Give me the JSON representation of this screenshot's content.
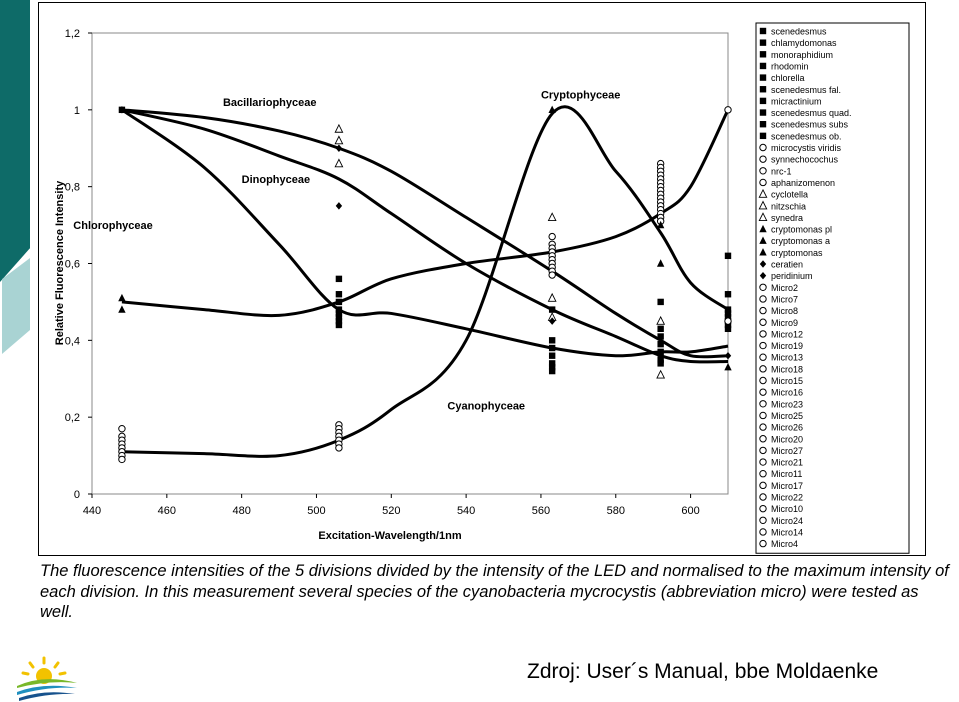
{
  "caption": "The fluorescence intensities of the 5 divisions divided by the intensity of the LED and normalised to the maximum intensity of each division. In this measurement several species of the cyanobacteria mycrocystis (abbreviation micro) were tested as well.",
  "source": "Zdroj: User´s Manual, bbe Moldaenke",
  "chart_data": {
    "type": "scatter",
    "title": "",
    "xlabel": "Excitation-Wavelength/1nm",
    "ylabel": "Relative Fluorescence Intensity",
    "xlim": [
      440,
      610
    ],
    "ylim": [
      0,
      1.2
    ],
    "x_ticks": [
      "440",
      "460",
      "480",
      "500",
      "520",
      "540",
      "560",
      "580",
      "600"
    ],
    "y_ticks": [
      "0",
      "0,2",
      "0,4",
      "0,6",
      "0,8",
      "1",
      "1,2"
    ],
    "grid": false,
    "legend_position": "right",
    "legend": [
      {
        "name": "scenedesmus",
        "marker": "square"
      },
      {
        "name": "chlamydomonas",
        "marker": "square"
      },
      {
        "name": "monoraphidium",
        "marker": "square"
      },
      {
        "name": "rhodomin",
        "marker": "square"
      },
      {
        "name": "chlorella",
        "marker": "square"
      },
      {
        "name": "scenedesmus fal.",
        "marker": "square"
      },
      {
        "name": "micractinium",
        "marker": "square"
      },
      {
        "name": "scenedesmus quad.",
        "marker": "square"
      },
      {
        "name": "scenedesmus subs",
        "marker": "square"
      },
      {
        "name": "scenedesmus ob.",
        "marker": "square"
      },
      {
        "name": "microcystis viridis",
        "marker": "circle"
      },
      {
        "name": "synnechocochus",
        "marker": "circle"
      },
      {
        "name": "nrc-1",
        "marker": "circle"
      },
      {
        "name": "aphanizomenon",
        "marker": "circle"
      },
      {
        "name": "cyclotella",
        "marker": "triangle-open"
      },
      {
        "name": "nitzschia",
        "marker": "triangle-open"
      },
      {
        "name": "synedra",
        "marker": "triangle-open"
      },
      {
        "name": "cryptomonas pl",
        "marker": "triangle"
      },
      {
        "name": "cryptomonas a",
        "marker": "triangle"
      },
      {
        "name": "cryptomonas",
        "marker": "triangle"
      },
      {
        "name": "ceratien",
        "marker": "diamond"
      },
      {
        "name": "peridinium",
        "marker": "diamond"
      },
      {
        "name": "Micro2",
        "marker": "circle"
      },
      {
        "name": "Micro7",
        "marker": "circle"
      },
      {
        "name": "Micro8",
        "marker": "circle"
      },
      {
        "name": "Micro9",
        "marker": "circle"
      },
      {
        "name": "Micro12",
        "marker": "circle"
      },
      {
        "name": "Micro19",
        "marker": "circle"
      },
      {
        "name": "Micro13",
        "marker": "circle"
      },
      {
        "name": "Micro18",
        "marker": "circle"
      },
      {
        "name": "Micro15",
        "marker": "circle"
      },
      {
        "name": "Micro16",
        "marker": "circle"
      },
      {
        "name": "Micro23",
        "marker": "circle"
      },
      {
        "name": "Micro25",
        "marker": "circle"
      },
      {
        "name": "Micro26",
        "marker": "circle"
      },
      {
        "name": "Micro20",
        "marker": "circle"
      },
      {
        "name": "Micro27",
        "marker": "circle"
      },
      {
        "name": "Micro21",
        "marker": "circle"
      },
      {
        "name": "Micro11",
        "marker": "circle"
      },
      {
        "name": "Micro17",
        "marker": "circle"
      },
      {
        "name": "Micro22",
        "marker": "circle"
      },
      {
        "name": "Micro10",
        "marker": "circle"
      },
      {
        "name": "Micro24",
        "marker": "circle"
      },
      {
        "name": "Micro14",
        "marker": "circle"
      },
      {
        "name": "Micro4",
        "marker": "circle"
      }
    ],
    "curves": [
      {
        "name": "Bacillariophyceae",
        "label_at": [
          475,
          1.01
        ],
        "points": [
          [
            448,
            1.0
          ],
          [
            470,
            0.98
          ],
          [
            490,
            0.945
          ],
          [
            506,
            0.9
          ],
          [
            520,
            0.84
          ],
          [
            540,
            0.72
          ],
          [
            563,
            0.58
          ],
          [
            580,
            0.47
          ],
          [
            592,
            0.4
          ],
          [
            600,
            0.36
          ],
          [
            610,
            0.36
          ]
        ]
      },
      {
        "name": "Dinophyceae",
        "label_at": [
          480,
          0.81
        ],
        "points": [
          [
            448,
            1.0
          ],
          [
            470,
            0.95
          ],
          [
            490,
            0.88
          ],
          [
            506,
            0.82
          ],
          [
            520,
            0.73
          ],
          [
            540,
            0.6
          ],
          [
            563,
            0.48
          ],
          [
            580,
            0.41
          ],
          [
            592,
            0.36
          ],
          [
            600,
            0.345
          ],
          [
            610,
            0.345
          ]
        ]
      },
      {
        "name": "Chlorophyceae",
        "label_at": [
          435,
          0.69
        ],
        "points": [
          [
            448,
            0.5
          ],
          [
            470,
            0.48
          ],
          [
            490,
            0.465
          ],
          [
            506,
            0.5
          ],
          [
            520,
            0.56
          ],
          [
            540,
            0.6
          ],
          [
            563,
            0.63
          ],
          [
            580,
            0.67
          ],
          [
            592,
            0.73
          ],
          [
            600,
            0.8
          ],
          [
            610,
            1.0
          ]
        ]
      },
      {
        "name": "Cryptophyceae",
        "label_at": [
          560,
          1.03
        ],
        "points": [
          [
            448,
            1.0
          ],
          [
            470,
            0.85
          ],
          [
            490,
            0.65
          ],
          [
            506,
            0.48
          ],
          [
            520,
            0.47
          ],
          [
            540,
            0.43
          ],
          [
            563,
            0.38
          ],
          [
            580,
            0.36
          ],
          [
            592,
            0.37
          ],
          [
            600,
            0.37
          ],
          [
            610,
            0.385
          ]
        ]
      },
      {
        "name": "Cyanophyceae",
        "label_at": [
          535,
          0.22
        ],
        "points": [
          [
            448,
            0.11
          ],
          [
            470,
            0.105
          ],
          [
            490,
            0.1
          ],
          [
            506,
            0.14
          ],
          [
            520,
            0.22
          ],
          [
            540,
            0.4
          ],
          [
            563,
            0.99
          ],
          [
            580,
            0.84
          ],
          [
            592,
            0.68
          ],
          [
            600,
            0.55
          ],
          [
            610,
            0.48
          ]
        ]
      }
    ],
    "series": [
      {
        "name": "Chlorophyceae",
        "marker": "square",
        "points": [
          [
            448,
            1.0
          ],
          [
            506,
            0.56
          ],
          [
            506,
            0.52
          ],
          [
            506,
            0.5
          ],
          [
            506,
            0.48
          ],
          [
            506,
            0.47
          ],
          [
            506,
            0.46
          ],
          [
            506,
            0.45
          ],
          [
            506,
            0.44
          ],
          [
            563,
            0.48
          ],
          [
            563,
            0.4
          ],
          [
            563,
            0.38
          ],
          [
            563,
            0.36
          ],
          [
            563,
            0.34
          ],
          [
            563,
            0.33
          ],
          [
            563,
            0.32
          ],
          [
            592,
            0.5
          ],
          [
            592,
            0.43
          ],
          [
            592,
            0.41
          ],
          [
            592,
            0.39
          ],
          [
            592,
            0.37
          ],
          [
            592,
            0.35
          ],
          [
            592,
            0.34
          ],
          [
            610,
            0.62
          ],
          [
            610,
            0.52
          ],
          [
            610,
            0.48
          ],
          [
            610,
            0.47
          ],
          [
            610,
            0.46
          ],
          [
            610,
            0.45
          ],
          [
            610,
            0.44
          ],
          [
            610,
            0.43
          ]
        ]
      },
      {
        "name": "Cyanophyceae",
        "marker": "circle",
        "points": [
          [
            448,
            0.17
          ],
          [
            448,
            0.15
          ],
          [
            448,
            0.14
          ],
          [
            448,
            0.13
          ],
          [
            448,
            0.12
          ],
          [
            448,
            0.11
          ],
          [
            448,
            0.1
          ],
          [
            448,
            0.09
          ],
          [
            506,
            0.18
          ],
          [
            506,
            0.17
          ],
          [
            506,
            0.16
          ],
          [
            506,
            0.15
          ],
          [
            506,
            0.14
          ],
          [
            506,
            0.13
          ],
          [
            506,
            0.12
          ],
          [
            563,
            0.67
          ],
          [
            563,
            0.65
          ],
          [
            563,
            0.64
          ],
          [
            563,
            0.63
          ],
          [
            563,
            0.62
          ],
          [
            563,
            0.61
          ],
          [
            563,
            0.6
          ],
          [
            563,
            0.59
          ],
          [
            563,
            0.58
          ],
          [
            563,
            0.57
          ],
          [
            592,
            0.86
          ],
          [
            592,
            0.85
          ],
          [
            592,
            0.84
          ],
          [
            592,
            0.83
          ],
          [
            592,
            0.82
          ],
          [
            592,
            0.81
          ],
          [
            592,
            0.8
          ],
          [
            592,
            0.79
          ],
          [
            592,
            0.78
          ],
          [
            592,
            0.77
          ],
          [
            592,
            0.76
          ],
          [
            592,
            0.75
          ],
          [
            592,
            0.74
          ],
          [
            592,
            0.73
          ],
          [
            592,
            0.72
          ],
          [
            592,
            0.71
          ],
          [
            610,
            1.0
          ],
          [
            610,
            0.45
          ]
        ]
      },
      {
        "name": "Bacillariophyceae",
        "marker": "triangle-open",
        "points": [
          [
            506,
            0.95
          ],
          [
            506,
            0.92
          ],
          [
            506,
            0.86
          ],
          [
            563,
            0.72
          ],
          [
            563,
            0.51
          ],
          [
            563,
            0.46
          ],
          [
            592,
            0.45
          ],
          [
            592,
            0.31
          ]
        ]
      },
      {
        "name": "Cryptophyceae",
        "marker": "triangle",
        "points": [
          [
            448,
            0.51
          ],
          [
            448,
            0.48
          ],
          [
            563,
            1.0
          ],
          [
            592,
            0.7
          ],
          [
            592,
            0.6
          ],
          [
            610,
            0.33
          ]
        ]
      },
      {
        "name": "Dinophyceae",
        "marker": "diamond",
        "points": [
          [
            448,
            1.0
          ],
          [
            506,
            0.9
          ],
          [
            506,
            0.75
          ],
          [
            563,
            0.45
          ],
          [
            610,
            0.36
          ]
        ]
      }
    ]
  }
}
